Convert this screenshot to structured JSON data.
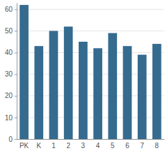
{
  "chart_data": {
    "type": "bar",
    "categories": [
      "PK",
      "K",
      "1",
      "2",
      "3",
      "4",
      "5",
      "6",
      "7",
      "8"
    ],
    "values": [
      62,
      43,
      50,
      52,
      45,
      42,
      49,
      43,
      39,
      44
    ],
    "color": "#356b8f",
    "ylim": [
      0,
      63
    ],
    "yticks": [
      0,
      10,
      20,
      30,
      40,
      50,
      60
    ],
    "grid": true
  }
}
